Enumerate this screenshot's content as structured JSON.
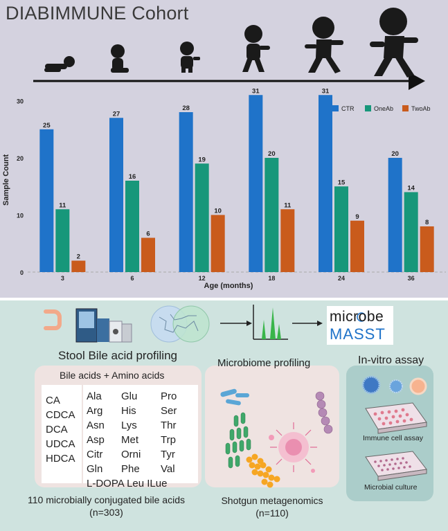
{
  "header": {
    "title": "DIABIMMUNE Cohort"
  },
  "chart_data": {
    "type": "bar",
    "categories": [
      "3",
      "6",
      "12",
      "18",
      "24",
      "36"
    ],
    "series": [
      {
        "name": "CTR",
        "values": [
          25,
          27,
          28,
          31,
          31,
          20
        ]
      },
      {
        "name": "OneAb",
        "values": [
          11,
          16,
          19,
          20,
          15,
          14
        ]
      },
      {
        "name": "TwoAb",
        "values": [
          2,
          6,
          10,
          11,
          9,
          8
        ]
      }
    ],
    "colors": [
      "#1f73c9",
      "#17977a",
      "#c95b1c"
    ],
    "xlabel": "Age (months)",
    "ylabel": "Sample Count",
    "ylim": [
      0,
      32
    ],
    "yticks": [
      "0",
      "10",
      "20",
      "30"
    ],
    "legend": "top-right",
    "grid": false
  },
  "workflow": {
    "stool_title": "Stool Bile acid profiling",
    "microbiome_title": "Microbiome profiling",
    "invitro_title": "In-vitro assay",
    "masst_line1": "microbe",
    "masst_line2": "MASST",
    "panel_header": "Bile acids  + Amino acids",
    "bile_acids": [
      "CA",
      "CDCA",
      "DCA",
      "UDCA",
      "HDCA"
    ],
    "amino_col1": [
      "Ala",
      "Arg",
      "Asn",
      "Asp",
      "Citr",
      "Gln"
    ],
    "amino_col2": [
      "Glu",
      "His",
      "Lys",
      "Met",
      "Orni",
      "Phe"
    ],
    "amino_col3": [
      "Pro",
      "Ser",
      "Thr",
      "Trp",
      "Tyr",
      "Val"
    ],
    "amino_last": "L-DOPA Leu ILue",
    "footer_left_line1": "110 microbially conjugated bile acids",
    "footer_left_line2": "(n=303)",
    "footer_mid_line1": "Shotgun metagenomics",
    "footer_mid_line2": "(n=110)",
    "immune_label": "Immune cell assay",
    "culture_label": "Microbial culture"
  }
}
